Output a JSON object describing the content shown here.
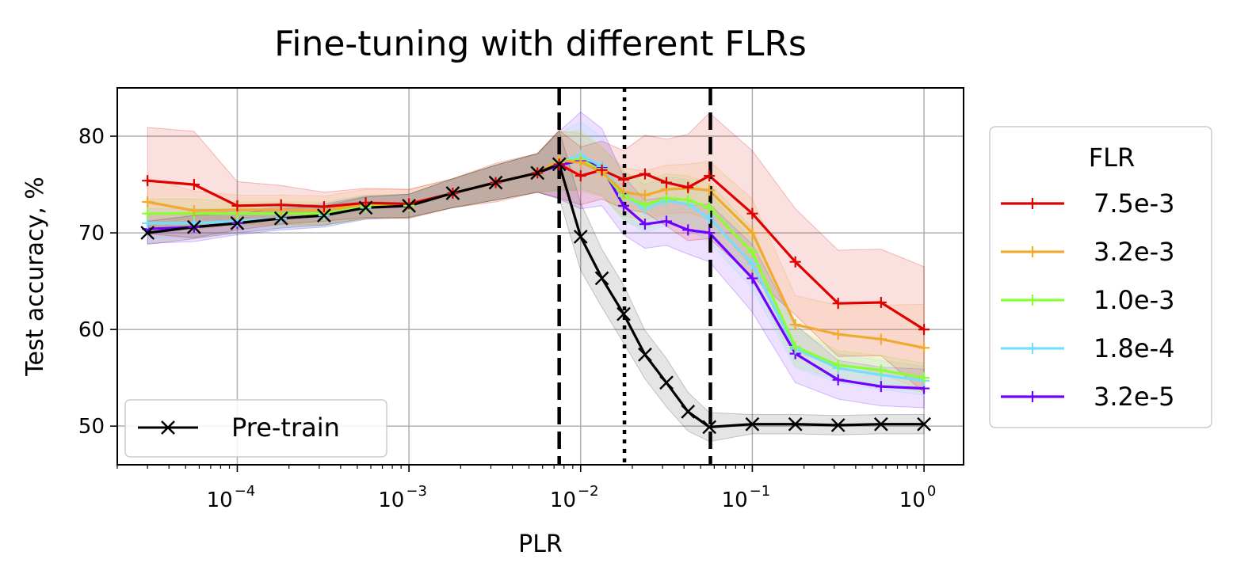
{
  "chart_data": {
    "type": "line",
    "title": "Fine-tuning with different FLRs",
    "xlabel": "PLR",
    "ylabel": "Test accuracy, %",
    "xscale": "log",
    "xlim": [
      2e-05,
      1.7
    ],
    "ylim": [
      46,
      85
    ],
    "grid": true,
    "x_ticks": [
      {
        "value": 0.0001,
        "base": "10",
        "exp": "−4"
      },
      {
        "value": 0.001,
        "base": "10",
        "exp": "−3"
      },
      {
        "value": 0.01,
        "base": "10",
        "exp": "−2"
      },
      {
        "value": 0.1,
        "base": "10",
        "exp": "−1"
      },
      {
        "value": 1,
        "base": "10",
        "exp": "0"
      }
    ],
    "y_ticks": [
      {
        "value": 50,
        "label": "50"
      },
      {
        "value": 60,
        "label": "60"
      },
      {
        "value": 70,
        "label": "70"
      },
      {
        "value": 80,
        "label": "80"
      }
    ],
    "vlines": [
      {
        "x": 0.0075,
        "style": "dashed"
      },
      {
        "x": 0.018,
        "style": "dotted"
      },
      {
        "x": 0.057,
        "style": "dashed"
      }
    ],
    "x": [
      3e-05,
      5.6e-05,
      0.0001,
      0.00018,
      0.00032,
      0.00056,
      0.001,
      0.0018,
      0.0032,
      0.0056,
      0.0075,
      0.01,
      0.0133,
      0.0178,
      0.0237,
      0.0316,
      0.0422,
      0.0562,
      0.1,
      0.178,
      0.316,
      0.562,
      1.0
    ],
    "pretrain": {
      "name": "Pre-train",
      "color": "#000000",
      "x": [
        3e-05,
        5.6e-05,
        0.0001,
        0.00018,
        0.00032,
        0.00056,
        0.001,
        0.0018,
        0.0032,
        0.0056,
        0.0075,
        0.01,
        0.0133,
        0.0178,
        0.0237,
        0.0316,
        0.0422,
        0.0562,
        0.1,
        0.178,
        0.316,
        0.562,
        1.0
      ],
      "values": [
        70.0,
        70.6,
        71.0,
        71.5,
        71.8,
        72.6,
        72.8,
        74.1,
        75.2,
        76.2,
        77.1,
        69.6,
        65.3,
        61.6,
        57.4,
        54.5,
        51.5,
        49.9,
        50.2,
        50.2,
        50.1,
        50.2,
        50.2
      ],
      "band": [
        1.2,
        1.2,
        1.0,
        1.0,
        1.0,
        1.1,
        1.2,
        1.5,
        1.8,
        2.0,
        3.5,
        3.5,
        3.0,
        3.0,
        2.5,
        2.5,
        2.0,
        1.5,
        1.0,
        1.0,
        1.0,
        1.0,
        1.0
      ]
    },
    "legend_title": "FLR",
    "series": [
      {
        "name": "7.5e-3",
        "color": "#e00000",
        "values": [
          75.4,
          75.0,
          72.8,
          72.9,
          72.7,
          73.1,
          73.0,
          74.1,
          75.2,
          76.2,
          77.1,
          75.9,
          76.5,
          75.5,
          76.1,
          75.2,
          74.7,
          75.9,
          72.0,
          67.0,
          62.7,
          62.8,
          60.0
        ],
        "band": [
          5.5,
          5.5,
          2.5,
          2.0,
          1.5,
          1.5,
          1.5,
          1.5,
          2.0,
          2.0,
          3.5,
          3.0,
          3.0,
          3.0,
          4.0,
          4.5,
          5.5,
          6.5,
          6.5,
          5.5,
          5.5,
          5.5,
          6.5
        ]
      },
      {
        "name": "3.2e-3",
        "color": "#f0aa30",
        "values": [
          73.2,
          72.3,
          72.4,
          72.4,
          72.3,
          73.0,
          73.0,
          74.1,
          75.2,
          76.2,
          77.5,
          77.3,
          76.3,
          74.2,
          73.9,
          74.5,
          74.6,
          74.4,
          70.0,
          60.5,
          59.5,
          59.0,
          58.1
        ],
        "band": [
          2.5,
          2.0,
          1.5,
          1.5,
          1.5,
          1.5,
          1.5,
          1.5,
          1.8,
          2.0,
          3.0,
          3.0,
          2.5,
          2.5,
          2.5,
          2.5,
          2.5,
          3.0,
          3.5,
          3.0,
          3.0,
          3.5,
          4.5
        ]
      },
      {
        "name": "1.0e-3",
        "color": "#88ff33",
        "values": [
          72.0,
          72.0,
          72.0,
          72.0,
          72.0,
          72.7,
          72.8,
          74.1,
          75.2,
          76.2,
          77.4,
          77.6,
          76.4,
          73.8,
          72.9,
          73.6,
          73.4,
          72.6,
          68.0,
          58.2,
          56.3,
          55.8,
          55.0
        ],
        "band": [
          1.5,
          1.5,
          1.2,
          1.2,
          1.2,
          1.2,
          1.2,
          1.5,
          1.8,
          2.0,
          3.0,
          3.0,
          2.5,
          2.5,
          2.5,
          2.5,
          2.5,
          2.5,
          2.5,
          2.0,
          1.5,
          1.5,
          1.5
        ]
      },
      {
        "name": "1.8e-4",
        "color": "#77ddff",
        "values": [
          71.0,
          71.0,
          71.2,
          71.5,
          71.8,
          72.6,
          72.8,
          74.1,
          75.2,
          76.2,
          77.3,
          78.0,
          76.9,
          73.9,
          72.5,
          73.3,
          73.0,
          71.5,
          66.8,
          58.0,
          56.0,
          55.3,
          54.7
        ],
        "band": [
          1.5,
          1.5,
          1.2,
          1.2,
          1.2,
          1.2,
          1.2,
          1.5,
          1.8,
          2.0,
          3.0,
          3.5,
          3.0,
          2.5,
          2.5,
          2.5,
          2.5,
          2.5,
          2.5,
          2.0,
          1.5,
          1.5,
          1.5
        ]
      },
      {
        "name": "3.2e-5",
        "color": "#7000ff",
        "values": [
          70.4,
          70.6,
          71.0,
          71.5,
          71.8,
          72.6,
          72.8,
          74.1,
          75.2,
          76.2,
          77.0,
          77.5,
          76.8,
          72.8,
          70.9,
          71.2,
          70.3,
          70.0,
          65.3,
          57.5,
          54.8,
          54.1,
          53.9
        ],
        "band": [
          1.5,
          1.5,
          1.2,
          1.2,
          1.2,
          1.2,
          1.2,
          1.5,
          1.8,
          2.0,
          3.5,
          5.0,
          4.0,
          3.0,
          2.5,
          2.5,
          2.5,
          3.0,
          3.5,
          3.0,
          2.0,
          2.0,
          2.0
        ]
      }
    ]
  }
}
